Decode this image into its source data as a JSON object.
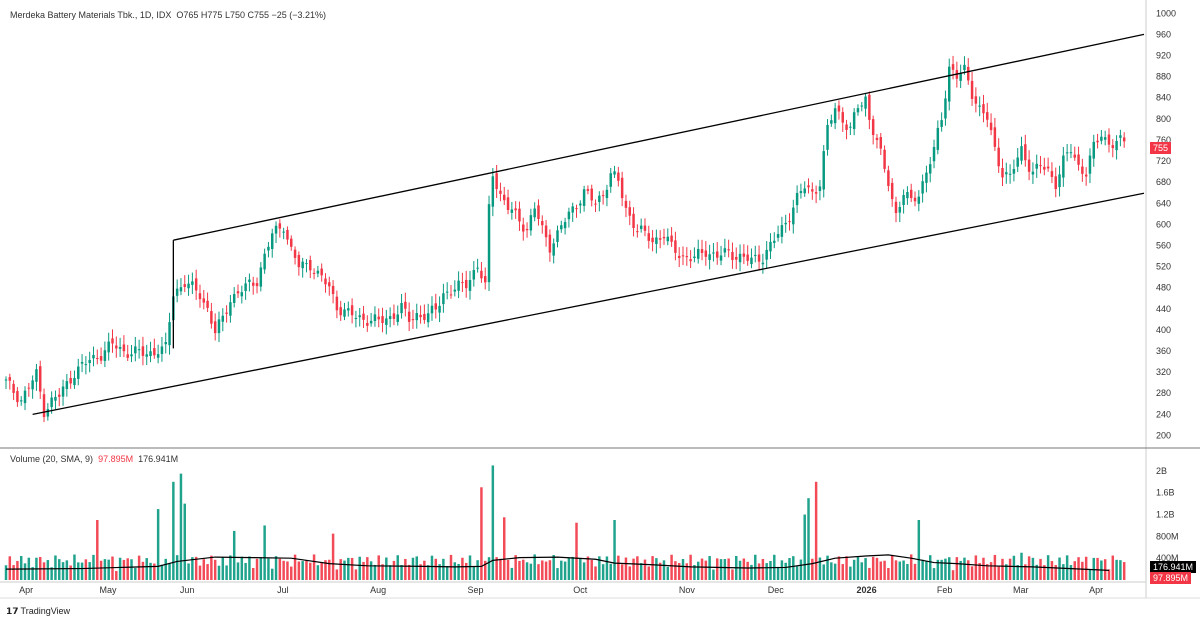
{
  "header": {
    "title": "Merdeka Battery Materials Tbk., 1D, IDX",
    "ohlc": "O765 H775 L750 C755 −25 (−3.21%)"
  },
  "volume_header": {
    "label": "Volume (20, SMA, 9)",
    "vol": "97.895M",
    "sma": "176.941M"
  },
  "branding": {
    "logo_text": "TradingView"
  },
  "last_price": {
    "label": "755",
    "color": "#f23645"
  },
  "volume_labels": {
    "sma": "176.941M",
    "vol": "97.895M",
    "sma_color": "#000000",
    "vol_color": "#f23645"
  },
  "colors": {
    "up": "#089981",
    "down": "#f23645",
    "channel": "#000000",
    "sma": "#000000",
    "grid": "#f0f3fa"
  },
  "chart_data": [
    {
      "type": "candlestick",
      "title": "Merdeka Battery Materials Tbk., 1D, IDX",
      "ylim": [
        180,
        1010
      ],
      "y_ticks": [
        1000,
        960,
        920,
        880,
        840,
        800,
        760,
        720,
        680,
        640,
        600,
        560,
        520,
        480,
        440,
        400,
        360,
        320,
        280,
        240,
        200
      ],
      "x_ticks": [
        "Apr",
        "May",
        "Jun",
        "Jul",
        "Aug",
        "Sep",
        "Oct",
        "Nov",
        "Dec",
        "2026",
        "Feb",
        "Mar",
        "Apr"
      ],
      "x_tick_days": [
        5,
        24,
        43,
        66,
        88,
        111,
        136,
        161,
        182,
        203,
        222,
        240,
        258
      ],
      "num_days": 265,
      "segments": [
        [
          0,
          300
        ],
        [
          4,
          268
        ],
        [
          8,
          315
        ],
        [
          10,
          248
        ],
        [
          12,
          265
        ],
        [
          14,
          275
        ],
        [
          18,
          320
        ],
        [
          22,
          342
        ],
        [
          25,
          355
        ],
        [
          28,
          372
        ],
        [
          31,
          360
        ],
        [
          35,
          356
        ],
        [
          37,
          355
        ],
        [
          40,
          362
        ],
        [
          41,
          360
        ],
        [
          42,
          365
        ],
        [
          44,
          470
        ],
        [
          47,
          490
        ],
        [
          49,
          478
        ],
        [
          51,
          468
        ],
        [
          53,
          440
        ],
        [
          55,
          395
        ],
        [
          57,
          420
        ],
        [
          59,
          460
        ],
        [
          62,
          475
        ],
        [
          66,
          495
        ],
        [
          68,
          540
        ],
        [
          70,
          580
        ],
        [
          73,
          600
        ],
        [
          75,
          550
        ],
        [
          77,
          520
        ],
        [
          80,
          525
        ],
        [
          82,
          505
        ],
        [
          85,
          480
        ],
        [
          87,
          445
        ],
        [
          90,
          430
        ],
        [
          92,
          425
        ],
        [
          95,
          420
        ],
        [
          98,
          415
        ],
        [
          101,
          425
        ],
        [
          104,
          440
        ],
        [
          106,
          420
        ],
        [
          108,
          430
        ],
        [
          111,
          425
        ],
        [
          113,
          440
        ],
        [
          115,
          470
        ],
        [
          118,
          475
        ],
        [
          121,
          490
        ],
        [
          124,
          520
        ],
        [
          126,
          480
        ],
        [
          127,
          630
        ],
        [
          128,
          700
        ],
        [
          130,
          655
        ],
        [
          132,
          630
        ],
        [
          135,
          610
        ],
        [
          137,
          590
        ],
        [
          139,
          630
        ],
        [
          141,
          590
        ],
        [
          143,
          560
        ],
        [
          145,
          580
        ],
        [
          148,
          620
        ],
        [
          150,
          640
        ],
        [
          152,
          660
        ],
        [
          155,
          640
        ],
        [
          157,
          660
        ],
        [
          159,
          695
        ],
        [
          161,
          680
        ],
        [
          163,
          630
        ],
        [
          166,
          590
        ],
        [
          168,
          580
        ],
        [
          170,
          570
        ],
        [
          173,
          580
        ],
        [
          175,
          555
        ],
        [
          178,
          540
        ],
        [
          181,
          535
        ],
        [
          184,
          550
        ],
        [
          187,
          540
        ],
        [
          190,
          545
        ],
        [
          193,
          540
        ],
        [
          196,
          530
        ],
        [
          199,
          540
        ],
        [
          201,
          560
        ],
        [
          204,
          590
        ],
        [
          206,
          620
        ],
        [
          208,
          650
        ],
        [
          210,
          670
        ],
        [
          212,
          660
        ],
        [
          214,
          680
        ],
        [
          216,
          780
        ],
        [
          218,
          820
        ],
        [
          220,
          800
        ],
        [
          222,
          780
        ],
        [
          224,
          820
        ],
        [
          226,
          840
        ],
        [
          227,
          800
        ],
        [
          229,
          760
        ],
        [
          231,
          700
        ],
        [
          232,
          680
        ],
        [
          234,
          620
        ],
        [
          236,
          660
        ],
        [
          238,
          640
        ],
        [
          240,
          660
        ],
        [
          242,
          700
        ],
        [
          244,
          740
        ],
        [
          246,
          800
        ],
        [
          248,
          900
        ],
        [
          250,
          880
        ],
        [
          252,
          890
        ],
        [
          254,
          850
        ],
        [
          256,
          820
        ],
        [
          258,
          800
        ],
        [
          260,
          740
        ],
        [
          262,
          700
        ],
        [
          264,
          690
        ],
        [
          267,
          740
        ],
        [
          270,
          700
        ],
        [
          272,
          710
        ],
        [
          274,
          700
        ],
        [
          276,
          680
        ],
        [
          278,
          720
        ],
        [
          280,
          740
        ],
        [
          282,
          710
        ],
        [
          284,
          700
        ],
        [
          286,
          745
        ],
        [
          288,
          770
        ],
        [
          290,
          755
        ]
      ],
      "channel": {
        "upper": {
          "from_day": 44,
          "from_price": 570,
          "to_day": 302,
          "to_price": 960
        },
        "upper_left": {
          "from_day": 44,
          "from_price": 570,
          "to_day": 44,
          "to_price": 365
        },
        "lower": {
          "from_day": 7,
          "from_price": 240,
          "to_day": 302,
          "to_price": 659
        }
      }
    },
    {
      "type": "bar",
      "title": "Volume (20, SMA, 9)",
      "ylim": [
        0,
        2200000000
      ],
      "y_ticks": [
        {
          "value": 2000000000,
          "label": "2B"
        },
        {
          "value": 1600000000,
          "label": "1.6B"
        },
        {
          "value": 1200000000,
          "label": "1.2B"
        },
        {
          "value": 800000000,
          "label": "800M"
        },
        {
          "value": 400000000,
          "label": "400M"
        }
      ],
      "series": [
        {
          "name": "Volume",
          "values_note": "derived per day"
        },
        {
          "name": "SMA 9"
        }
      ],
      "spikes": [
        [
          24,
          1100000000
        ],
        [
          40,
          1300000000
        ],
        [
          44,
          1800000000
        ],
        [
          46,
          1950000000
        ],
        [
          47,
          1400000000
        ],
        [
          60,
          900000000
        ],
        [
          68,
          1000000000
        ],
        [
          86,
          850000000
        ],
        [
          125,
          1700000000
        ],
        [
          128,
          2100000000
        ],
        [
          131,
          1150000000
        ],
        [
          150,
          1050000000
        ],
        [
          160,
          1100000000
        ],
        [
          210,
          1200000000
        ],
        [
          211,
          1500000000
        ],
        [
          213,
          1800000000
        ],
        [
          240,
          1100000000
        ],
        [
          267,
          500000000
        ]
      ],
      "sma_points": [
        [
          0,
          200000000
        ],
        [
          20,
          210000000
        ],
        [
          30,
          230000000
        ],
        [
          40,
          250000000
        ],
        [
          45,
          340000000
        ],
        [
          55,
          420000000
        ],
        [
          65,
          410000000
        ],
        [
          75,
          400000000
        ],
        [
          85,
          300000000
        ],
        [
          95,
          260000000
        ],
        [
          110,
          250000000
        ],
        [
          118,
          240000000
        ],
        [
          125,
          250000000
        ],
        [
          128,
          360000000
        ],
        [
          135,
          410000000
        ],
        [
          145,
          420000000
        ],
        [
          155,
          380000000
        ],
        [
          160,
          310000000
        ],
        [
          170,
          280000000
        ],
        [
          180,
          240000000
        ],
        [
          195,
          220000000
        ],
        [
          205,
          230000000
        ],
        [
          212,
          300000000
        ],
        [
          218,
          400000000
        ],
        [
          226,
          440000000
        ],
        [
          232,
          460000000
        ],
        [
          238,
          400000000
        ],
        [
          244,
          320000000
        ],
        [
          250,
          300000000
        ],
        [
          258,
          260000000
        ],
        [
          270,
          240000000
        ],
        [
          290,
          176941000
        ]
      ]
    }
  ]
}
